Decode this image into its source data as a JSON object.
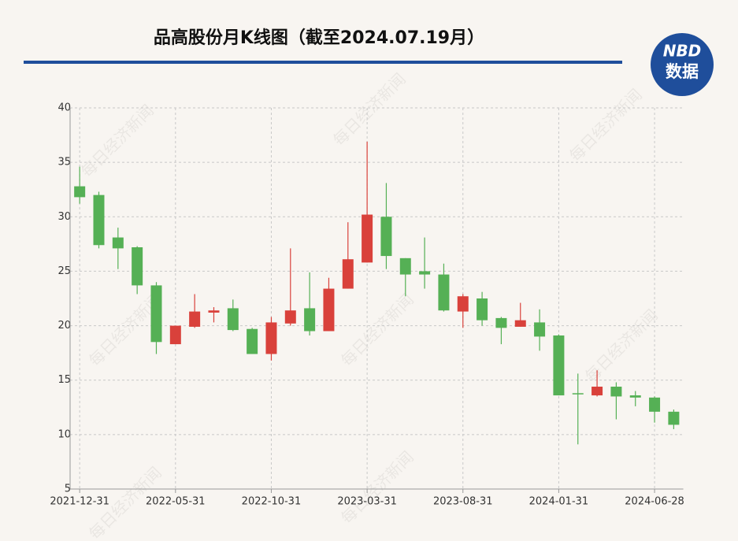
{
  "chart_data": {
    "type": "candlestick",
    "title": "品高股份月K线图（截至2024.07.19月）",
    "logo": {
      "top": "NBD",
      "bottom": "数据"
    },
    "watermark": "每日经济新闻",
    "categories": [
      "2021-12-31",
      null,
      null,
      null,
      null,
      "2022-05-31",
      null,
      null,
      null,
      null,
      "2022-10-31",
      null,
      null,
      null,
      null,
      "2023-03-31",
      null,
      null,
      null,
      null,
      "2023-08-31",
      null,
      null,
      null,
      null,
      "2024-01-31",
      null,
      null,
      null,
      null,
      "2024-06-28",
      null
    ],
    "open": [
      32.8,
      32.0,
      28.1,
      27.2,
      23.7,
      18.3,
      19.9,
      21.2,
      21.6,
      19.7,
      17.4,
      20.2,
      21.6,
      19.5,
      23.4,
      25.8,
      30.0,
      26.2,
      25.0,
      24.7,
      21.3,
      22.5,
      20.7,
      19.9,
      20.3,
      19.1,
      13.8,
      13.6,
      14.4,
      13.6,
      13.4,
      12.1
    ],
    "high": [
      34.6,
      32.3,
      29.0,
      27.3,
      24.0,
      20.0,
      22.9,
      21.7,
      22.4,
      19.8,
      20.8,
      27.1,
      24.9,
      24.4,
      29.5,
      36.9,
      33.1,
      26.2,
      28.1,
      25.7,
      22.9,
      23.1,
      20.8,
      22.1,
      21.5,
      19.2,
      15.6,
      15.9,
      14.8,
      14.0,
      13.5,
      12.3
    ],
    "low": [
      31.2,
      27.1,
      25.2,
      22.9,
      17.4,
      18.3,
      19.8,
      20.3,
      19.5,
      17.4,
      16.8,
      20.0,
      19.1,
      19.5,
      23.4,
      25.8,
      25.2,
      22.7,
      23.4,
      21.3,
      19.8,
      20.0,
      18.3,
      19.9,
      17.7,
      13.6,
      9.1,
      13.5,
      11.4,
      12.6,
      11.1,
      10.5
    ],
    "close": [
      31.8,
      27.4,
      27.1,
      23.7,
      18.5,
      20.0,
      21.3,
      21.4,
      19.6,
      17.4,
      20.3,
      21.4,
      19.5,
      23.4,
      26.1,
      30.2,
      26.4,
      24.7,
      24.7,
      21.4,
      22.7,
      20.5,
      19.8,
      20.5,
      19.0,
      13.6,
      13.7,
      14.4,
      13.5,
      13.4,
      12.1,
      10.9
    ],
    "up_color": "#d9413b",
    "down_color": "#55b055",
    "ylim": [
      5,
      40
    ],
    "yticks": [
      5,
      10,
      15,
      20,
      25,
      30,
      35,
      40
    ],
    "grid": true
  }
}
